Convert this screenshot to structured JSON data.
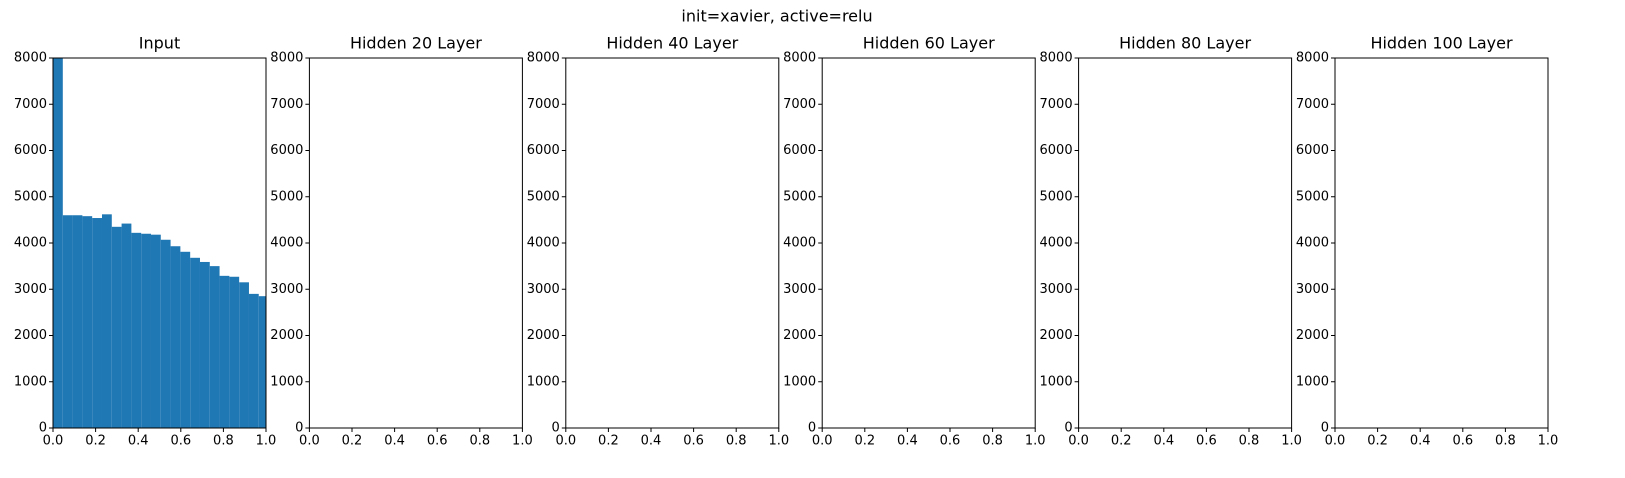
{
  "suptitle": "init=xavier, active=relu",
  "chart_data": [
    {
      "type": "histogram",
      "title": "Input",
      "color": "#1f77b4",
      "bins": [
        0,
        0.046,
        0.092,
        0.138,
        0.184,
        0.23,
        0.276,
        0.322,
        0.368,
        0.414,
        0.46,
        0.506,
        0.552,
        0.598,
        0.644,
        0.69,
        0.736,
        0.782,
        0.828,
        0.874,
        0.92,
        0.966,
        1.012
      ],
      "values": [
        8000,
        4600,
        4600,
        4580,
        4540,
        4620,
        4350,
        4420,
        4220,
        4200,
        4180,
        4070,
        3930,
        3810,
        3680,
        3590,
        3500,
        3290,
        3270,
        3150,
        2900,
        2850
      ],
      "xlim": [
        0,
        1
      ],
      "ylim": [
        0,
        8000
      ],
      "xticks": [
        {
          "value": 0,
          "label": "0.0"
        },
        {
          "value": 0.2,
          "label": "0.2"
        },
        {
          "value": 0.4,
          "label": "0.4"
        },
        {
          "value": 0.6,
          "label": "0.6"
        },
        {
          "value": 0.8,
          "label": "0.8"
        },
        {
          "value": 1,
          "label": "1.0"
        }
      ],
      "yticks": [
        0,
        1000,
        2000,
        3000,
        4000,
        5000,
        6000,
        7000,
        8000
      ]
    },
    {
      "type": "histogram",
      "title": "Hidden 20 Layer",
      "xlim": [
        0,
        1
      ],
      "ylim": [
        0,
        8000
      ],
      "xticks": [
        {
          "value": 0,
          "label": "0.0"
        },
        {
          "value": 0.2,
          "label": "0.2"
        },
        {
          "value": 0.4,
          "label": "0.4"
        },
        {
          "value": 0.6,
          "label": "0.6"
        },
        {
          "value": 0.8,
          "label": "0.8"
        },
        {
          "value": 1,
          "label": "1.0"
        }
      ],
      "yticks": [
        0,
        1000,
        2000,
        3000,
        4000,
        5000,
        6000,
        7000,
        8000
      ]
    },
    {
      "type": "histogram",
      "title": "Hidden 40 Layer",
      "xlim": [
        0,
        1
      ],
      "ylim": [
        0,
        8000
      ],
      "xticks": [
        {
          "value": 0,
          "label": "0.0"
        },
        {
          "value": 0.2,
          "label": "0.2"
        },
        {
          "value": 0.4,
          "label": "0.4"
        },
        {
          "value": 0.6,
          "label": "0.6"
        },
        {
          "value": 0.8,
          "label": "0.8"
        },
        {
          "value": 1,
          "label": "1.0"
        }
      ],
      "yticks": [
        0,
        1000,
        2000,
        3000,
        4000,
        5000,
        6000,
        7000,
        8000
      ]
    },
    {
      "type": "histogram",
      "title": "Hidden 60 Layer",
      "xlim": [
        0,
        1
      ],
      "ylim": [
        0,
        8000
      ],
      "xticks": [
        {
          "value": 0,
          "label": "0.0"
        },
        {
          "value": 0.2,
          "label": "0.2"
        },
        {
          "value": 0.4,
          "label": "0.4"
        },
        {
          "value": 0.6,
          "label": "0.6"
        },
        {
          "value": 0.8,
          "label": "0.8"
        },
        {
          "value": 1,
          "label": "1.0"
        }
      ],
      "yticks": [
        0,
        1000,
        2000,
        3000,
        4000,
        5000,
        6000,
        7000,
        8000
      ]
    },
    {
      "type": "histogram",
      "title": "Hidden 80 Layer",
      "xlim": [
        0,
        1
      ],
      "ylim": [
        0,
        8000
      ],
      "xticks": [
        {
          "value": 0,
          "label": "0.0"
        },
        {
          "value": 0.2,
          "label": "0.2"
        },
        {
          "value": 0.4,
          "label": "0.4"
        },
        {
          "value": 0.6,
          "label": "0.6"
        },
        {
          "value": 0.8,
          "label": "0.8"
        },
        {
          "value": 1,
          "label": "1.0"
        }
      ],
      "yticks": [
        0,
        1000,
        2000,
        3000,
        4000,
        5000,
        6000,
        7000,
        8000
      ]
    },
    {
      "type": "histogram",
      "title": "Hidden 100 Layer",
      "xlim": [
        0,
        1
      ],
      "ylim": [
        0,
        8000
      ],
      "xticks": [
        {
          "value": 0,
          "label": "0.0"
        },
        {
          "value": 0.2,
          "label": "0.2"
        },
        {
          "value": 0.4,
          "label": "0.4"
        },
        {
          "value": 0.6,
          "label": "0.6"
        },
        {
          "value": 0.8,
          "label": "0.8"
        },
        {
          "value": 1,
          "label": "1.0"
        }
      ],
      "yticks": [
        0,
        1000,
        2000,
        3000,
        4000,
        5000,
        6000,
        7000,
        8000
      ]
    }
  ]
}
